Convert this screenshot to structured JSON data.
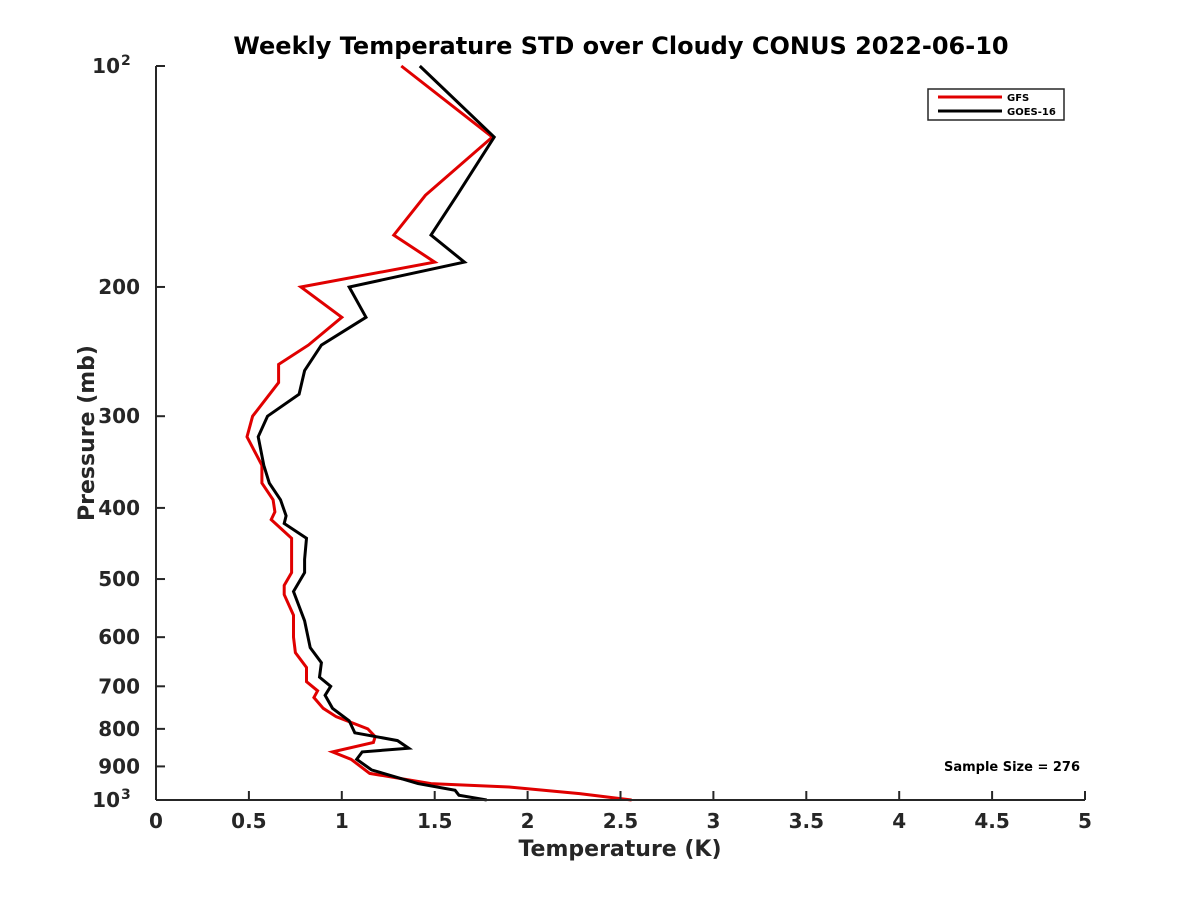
{
  "chart_data": {
    "type": "line",
    "title": "Weekly Temperature STD over Cloudy CONUS 2022-06-10",
    "xlabel": "Temperature (K)",
    "ylabel": "Pressure (mb)",
    "xlim": [
      0,
      5
    ],
    "ylim": [
      100,
      1000
    ],
    "yscale": "log",
    "y_reversed": true,
    "grid": false,
    "x_ticks": [
      0,
      0.5,
      1,
      1.5,
      2,
      2.5,
      3,
      3.5,
      4,
      4.5,
      5
    ],
    "x_tick_labels": [
      "0",
      "0.5",
      "1",
      "1.5",
      "2",
      "2.5",
      "3",
      "3.5",
      "4",
      "4.5",
      "5"
    ],
    "y_ticks": [
      100,
      200,
      300,
      400,
      500,
      600,
      700,
      800,
      900,
      1000
    ],
    "y_tick_labels": [
      {
        "base": "10",
        "exp": "2"
      },
      {
        "base": "200"
      },
      {
        "base": "300"
      },
      {
        "base": "400"
      },
      {
        "base": "500"
      },
      {
        "base": "600"
      },
      {
        "base": "700"
      },
      {
        "base": "800"
      },
      {
        "base": "900"
      },
      {
        "base": "10",
        "exp": "3"
      }
    ],
    "legend_position": "top-right",
    "series": [
      {
        "name": "GFS",
        "color": "#e00000",
        "points": [
          [
            1.32,
            100
          ],
          [
            1.81,
            125
          ],
          [
            1.45,
            150
          ],
          [
            1.28,
            170
          ],
          [
            1.5,
            185
          ],
          [
            0.78,
            200
          ],
          [
            1.0,
            220
          ],
          [
            0.82,
            240
          ],
          [
            0.66,
            255
          ],
          [
            0.66,
            270
          ],
          [
            0.52,
            300
          ],
          [
            0.49,
            320
          ],
          [
            0.57,
            350
          ],
          [
            0.57,
            370
          ],
          [
            0.63,
            390
          ],
          [
            0.64,
            405
          ],
          [
            0.62,
            415
          ],
          [
            0.73,
            440
          ],
          [
            0.73,
            470
          ],
          [
            0.73,
            490
          ],
          [
            0.69,
            510
          ],
          [
            0.69,
            525
          ],
          [
            0.74,
            560
          ],
          [
            0.74,
            600
          ],
          [
            0.75,
            630
          ],
          [
            0.81,
            660
          ],
          [
            0.81,
            690
          ],
          [
            0.87,
            710
          ],
          [
            0.85,
            725
          ],
          [
            0.9,
            750
          ],
          [
            0.97,
            770
          ],
          [
            1.14,
            800
          ],
          [
            1.18,
            820
          ],
          [
            1.17,
            835
          ],
          [
            0.95,
            860
          ],
          [
            1.05,
            880
          ],
          [
            1.15,
            920
          ],
          [
            1.48,
            950
          ],
          [
            1.9,
            960
          ],
          [
            2.28,
            980
          ],
          [
            2.56,
            1000
          ]
        ]
      },
      {
        "name": "GOES-16",
        "color": "#000000",
        "points": [
          [
            1.42,
            100
          ],
          [
            1.82,
            125
          ],
          [
            1.62,
            150
          ],
          [
            1.48,
            170
          ],
          [
            1.66,
            185
          ],
          [
            1.04,
            200
          ],
          [
            1.13,
            220
          ],
          [
            0.89,
            240
          ],
          [
            0.8,
            260
          ],
          [
            0.77,
            280
          ],
          [
            0.6,
            300
          ],
          [
            0.55,
            320
          ],
          [
            0.58,
            350
          ],
          [
            0.61,
            370
          ],
          [
            0.67,
            390
          ],
          [
            0.7,
            410
          ],
          [
            0.69,
            420
          ],
          [
            0.81,
            440
          ],
          [
            0.8,
            470
          ],
          [
            0.8,
            490
          ],
          [
            0.74,
            520
          ],
          [
            0.8,
            570
          ],
          [
            0.83,
            620
          ],
          [
            0.89,
            650
          ],
          [
            0.88,
            680
          ],
          [
            0.94,
            700
          ],
          [
            0.91,
            720
          ],
          [
            0.95,
            750
          ],
          [
            1.04,
            780
          ],
          [
            1.07,
            810
          ],
          [
            1.3,
            830
          ],
          [
            1.36,
            850
          ],
          [
            1.11,
            860
          ],
          [
            1.08,
            880
          ],
          [
            1.16,
            910
          ],
          [
            1.41,
            950
          ],
          [
            1.61,
            970
          ],
          [
            1.63,
            985
          ],
          [
            1.78,
            1000
          ]
        ]
      }
    ],
    "annotations": [
      "Sample Size = 276"
    ]
  }
}
